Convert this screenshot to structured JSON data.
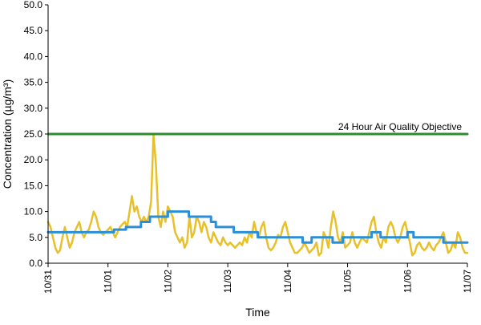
{
  "chart_data": {
    "type": "line",
    "title": "",
    "xlabel": "Time",
    "ylabel": "Concentration (µg/m³)",
    "ylim": [
      0,
      50
    ],
    "yticks": [
      "0.0",
      "5.0",
      "10.0",
      "15.0",
      "20.0",
      "25.0",
      "30.0",
      "35.0",
      "40.0",
      "45.0",
      "50.0"
    ],
    "xlim": [
      0,
      7
    ],
    "xticks": [
      {
        "x": 0,
        "label": "10/31"
      },
      {
        "x": 1,
        "label": "11/01"
      },
      {
        "x": 2,
        "label": "11/02"
      },
      {
        "x": 3,
        "label": "11/03"
      },
      {
        "x": 4,
        "label": "11/04"
      },
      {
        "x": 5,
        "label": "11/05"
      },
      {
        "x": 6,
        "label": "11/06"
      },
      {
        "x": 7,
        "label": "11/07"
      }
    ],
    "grid": false,
    "legend": "none",
    "annotations": [
      {
        "text": "24 Hour Air Quality Objective",
        "y": 25
      }
    ],
    "series": [
      {
        "color": "#e8c12a",
        "style": "hourly",
        "points": [
          [
            0,
            8
          ],
          [
            0.04,
            7
          ],
          [
            0.08,
            5
          ],
          [
            0.12,
            3
          ],
          [
            0.16,
            2
          ],
          [
            0.2,
            2.5
          ],
          [
            0.24,
            5
          ],
          [
            0.28,
            7
          ],
          [
            0.32,
            5
          ],
          [
            0.36,
            3
          ],
          [
            0.4,
            4
          ],
          [
            0.44,
            6
          ],
          [
            0.48,
            7
          ],
          [
            0.52,
            8
          ],
          [
            0.56,
            6
          ],
          [
            0.6,
            5
          ],
          [
            0.64,
            6
          ],
          [
            0.68,
            6.5
          ],
          [
            0.72,
            8
          ],
          [
            0.76,
            10
          ],
          [
            0.8,
            9
          ],
          [
            0.84,
            7
          ],
          [
            0.88,
            6
          ],
          [
            0.92,
            5.5
          ],
          [
            0.96,
            6
          ],
          [
            1,
            6.5
          ],
          [
            1.04,
            7
          ],
          [
            1.08,
            6
          ],
          [
            1.12,
            5
          ],
          [
            1.16,
            6
          ],
          [
            1.2,
            7
          ],
          [
            1.24,
            7.5
          ],
          [
            1.28,
            8
          ],
          [
            1.32,
            7
          ],
          [
            1.36,
            10
          ],
          [
            1.4,
            13
          ],
          [
            1.44,
            10
          ],
          [
            1.48,
            11
          ],
          [
            1.52,
            9
          ],
          [
            1.56,
            8
          ],
          [
            1.6,
            9
          ],
          [
            1.64,
            8
          ],
          [
            1.68,
            9
          ],
          [
            1.72,
            12
          ],
          [
            1.76,
            25
          ],
          [
            1.8,
            19
          ],
          [
            1.84,
            9
          ],
          [
            1.88,
            7
          ],
          [
            1.92,
            10
          ],
          [
            1.96,
            8
          ],
          [
            2,
            11
          ],
          [
            2.04,
            10
          ],
          [
            2.08,
            9
          ],
          [
            2.12,
            6
          ],
          [
            2.16,
            5
          ],
          [
            2.2,
            4
          ],
          [
            2.24,
            5
          ],
          [
            2.28,
            3
          ],
          [
            2.32,
            4
          ],
          [
            2.36,
            9
          ],
          [
            2.4,
            5
          ],
          [
            2.44,
            6
          ],
          [
            2.48,
            9
          ],
          [
            2.52,
            8
          ],
          [
            2.56,
            6
          ],
          [
            2.6,
            8
          ],
          [
            2.64,
            7
          ],
          [
            2.68,
            5
          ],
          [
            2.72,
            4
          ],
          [
            2.76,
            6
          ],
          [
            2.8,
            5
          ],
          [
            2.84,
            4
          ],
          [
            2.88,
            3.5
          ],
          [
            2.92,
            5
          ],
          [
            2.96,
            4
          ],
          [
            3,
            3.5
          ],
          [
            3.04,
            4
          ],
          [
            3.08,
            3.5
          ],
          [
            3.12,
            3
          ],
          [
            3.16,
            3.5
          ],
          [
            3.2,
            4
          ],
          [
            3.24,
            3.5
          ],
          [
            3.28,
            5
          ],
          [
            3.32,
            4
          ],
          [
            3.36,
            6
          ],
          [
            3.4,
            5
          ],
          [
            3.44,
            8
          ],
          [
            3.48,
            6
          ],
          [
            3.52,
            5
          ],
          [
            3.56,
            7
          ],
          [
            3.6,
            8
          ],
          [
            3.64,
            5
          ],
          [
            3.68,
            3
          ],
          [
            3.72,
            2.5
          ],
          [
            3.76,
            3
          ],
          [
            3.8,
            4
          ],
          [
            3.84,
            5.5
          ],
          [
            3.88,
            5
          ],
          [
            3.92,
            7
          ],
          [
            3.96,
            8
          ],
          [
            4,
            6
          ],
          [
            4.04,
            4
          ],
          [
            4.08,
            3
          ],
          [
            4.12,
            2
          ],
          [
            4.16,
            2
          ],
          [
            4.2,
            2.5
          ],
          [
            4.24,
            3
          ],
          [
            4.28,
            4
          ],
          [
            4.32,
            3
          ],
          [
            4.36,
            2
          ],
          [
            4.4,
            2.5
          ],
          [
            4.44,
            3
          ],
          [
            4.48,
            4
          ],
          [
            4.52,
            1.5
          ],
          [
            4.56,
            2
          ],
          [
            4.6,
            6
          ],
          [
            4.64,
            5
          ],
          [
            4.68,
            3
          ],
          [
            4.72,
            7
          ],
          [
            4.76,
            10
          ],
          [
            4.8,
            8
          ],
          [
            4.84,
            5
          ],
          [
            4.88,
            4
          ],
          [
            4.92,
            6
          ],
          [
            4.96,
            3
          ],
          [
            5,
            3.5
          ],
          [
            5.04,
            4
          ],
          [
            5.08,
            6
          ],
          [
            5.12,
            4
          ],
          [
            5.16,
            3
          ],
          [
            5.2,
            4
          ],
          [
            5.24,
            5
          ],
          [
            5.28,
            4.5
          ],
          [
            5.32,
            4
          ],
          [
            5.36,
            6
          ],
          [
            5.4,
            8
          ],
          [
            5.44,
            9
          ],
          [
            5.48,
            6
          ],
          [
            5.52,
            4
          ],
          [
            5.56,
            3
          ],
          [
            5.6,
            5
          ],
          [
            5.64,
            4
          ],
          [
            5.68,
            7
          ],
          [
            5.72,
            8
          ],
          [
            5.76,
            7
          ],
          [
            5.8,
            5
          ],
          [
            5.84,
            4
          ],
          [
            5.88,
            5
          ],
          [
            5.92,
            7
          ],
          [
            5.96,
            8
          ],
          [
            6,
            6
          ],
          [
            6.04,
            4
          ],
          [
            6.08,
            1.5
          ],
          [
            6.12,
            2
          ],
          [
            6.16,
            3.5
          ],
          [
            6.2,
            4
          ],
          [
            6.24,
            3
          ],
          [
            6.28,
            2.5
          ],
          [
            6.32,
            3
          ],
          [
            6.36,
            4
          ],
          [
            6.4,
            3
          ],
          [
            6.44,
            2.5
          ],
          [
            6.48,
            3.5
          ],
          [
            6.52,
            4
          ],
          [
            6.56,
            5
          ],
          [
            6.6,
            6
          ],
          [
            6.64,
            4
          ],
          [
            6.68,
            2
          ],
          [
            6.72,
            2.5
          ],
          [
            6.76,
            4
          ],
          [
            6.8,
            3
          ],
          [
            6.84,
            6
          ],
          [
            6.88,
            5
          ],
          [
            6.92,
            3
          ],
          [
            6.96,
            2
          ],
          [
            7,
            2
          ]
        ]
      },
      {
        "color": "#2b8fd8",
        "style": "rolling",
        "steps": [
          [
            0,
            6
          ],
          [
            1.1,
            6
          ],
          [
            1.1,
            6.5
          ],
          [
            1.3,
            6.5
          ],
          [
            1.3,
            7
          ],
          [
            1.55,
            7
          ],
          [
            1.55,
            8
          ],
          [
            1.7,
            8
          ],
          [
            1.7,
            9
          ],
          [
            2,
            9
          ],
          [
            2,
            10
          ],
          [
            2.35,
            10
          ],
          [
            2.35,
            9
          ],
          [
            2.72,
            9
          ],
          [
            2.72,
            8
          ],
          [
            2.8,
            8
          ],
          [
            2.8,
            7
          ],
          [
            3.1,
            7
          ],
          [
            3.1,
            6
          ],
          [
            3.5,
            6
          ],
          [
            3.5,
            5
          ],
          [
            4.25,
            5
          ],
          [
            4.25,
            4
          ],
          [
            4.4,
            4
          ],
          [
            4.4,
            5
          ],
          [
            4.75,
            5
          ],
          [
            4.75,
            4
          ],
          [
            4.92,
            4
          ],
          [
            4.92,
            5
          ],
          [
            5.4,
            5
          ],
          [
            5.4,
            6
          ],
          [
            5.55,
            6
          ],
          [
            5.55,
            5
          ],
          [
            6,
            5
          ],
          [
            6,
            6
          ],
          [
            6.1,
            6
          ],
          [
            6.1,
            5
          ],
          [
            6.6,
            5
          ],
          [
            6.6,
            4
          ],
          [
            7,
            4
          ]
        ]
      },
      {
        "color": "#2e8b2e",
        "style": "objective",
        "points": [
          [
            0,
            25
          ],
          [
            7,
            25
          ]
        ]
      }
    ]
  }
}
